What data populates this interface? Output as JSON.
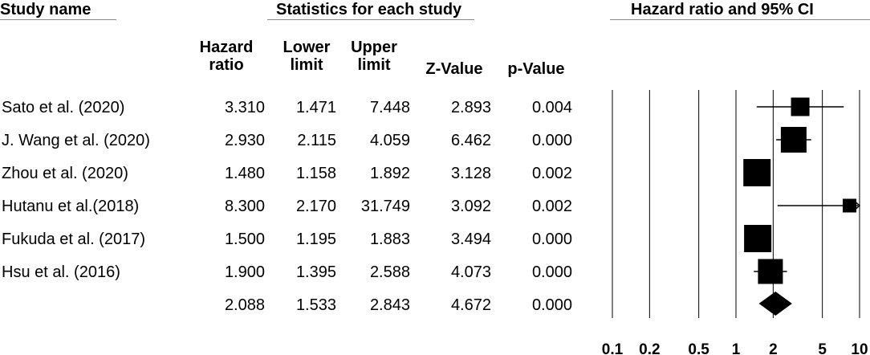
{
  "headers": {
    "study_name": "Study name",
    "statistics": "Statistics for each study",
    "plot_title": "Hazard ratio and 95% CI"
  },
  "columns": {
    "hr": [
      "Hazard",
      "ratio"
    ],
    "lower": [
      "Lower",
      "limit"
    ],
    "upper": [
      "Upper",
      "limit"
    ],
    "z": "Z-Value",
    "p": "p-Value"
  },
  "chart_data": {
    "type": "table",
    "plot": "forest",
    "scale": "log",
    "x_ticks": [
      "0.1",
      "0.2",
      "0.5",
      "1",
      "2",
      "5",
      "10"
    ],
    "x_tick_values": [
      0.1,
      0.2,
      0.5,
      1,
      2,
      5,
      10
    ],
    "xlim": [
      0.1,
      10
    ],
    "reference_line": 1,
    "studies": [
      {
        "name": "Sato et al. (2020)",
        "hr": "3.310",
        "lower": "1.471",
        "upper": "7.448",
        "z": "2.893",
        "p": "0.004",
        "weight": 0.85
      },
      {
        "name": "J. Wang et al. (2020)",
        "hr": "2.930",
        "lower": "2.115",
        "upper": "4.059",
        "z": "6.462",
        "p": "0.000",
        "weight": 1.3
      },
      {
        "name": "Zhou et al. (2020)",
        "hr": "1.480",
        "lower": "1.158",
        "upper": "1.892",
        "z": "3.128",
        "p": "0.002",
        "weight": 1.4
      },
      {
        "name": "Hutanu et al.(2018)",
        "hr": "8.300",
        "lower": "2.170",
        "upper": "31.749",
        "z": "3.092",
        "p": "0.002",
        "weight": 0.55
      },
      {
        "name": "Fukuda et al. (2017)",
        "hr": "1.500",
        "lower": "1.195",
        "upper": "1.883",
        "z": "3.494",
        "p": "0.000",
        "weight": 1.4
      },
      {
        "name": "Hsu et al. (2016)",
        "hr": "1.900",
        "lower": "1.395",
        "upper": "2.588",
        "z": "4.073",
        "p": "0.000",
        "weight": 1.25
      }
    ],
    "summary": {
      "hr": "2.088",
      "lower": "1.533",
      "upper": "2.843",
      "z": "4.672",
      "p": "0.000"
    }
  }
}
